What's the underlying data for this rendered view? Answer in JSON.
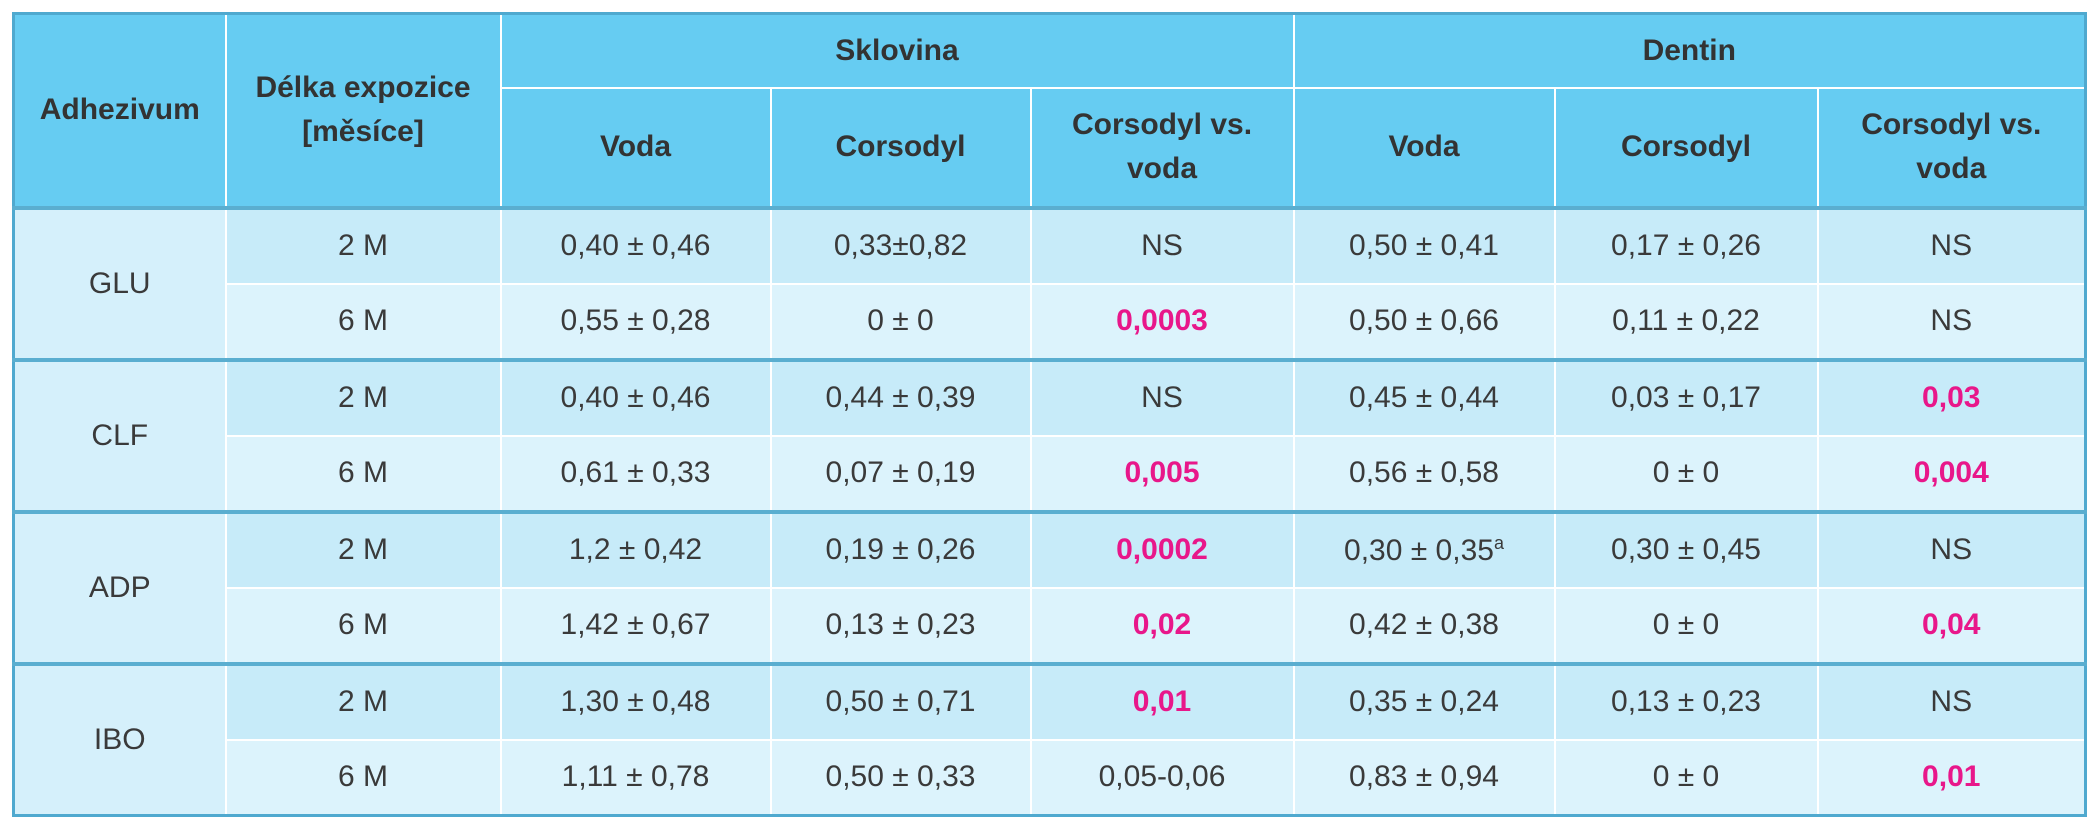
{
  "header": {
    "adhezivum": "Adhezivum",
    "delka_line1": "Délka expozice",
    "delka_line2": "[měsíce]",
    "sklovina": "Sklovina",
    "dentin": "Dentin",
    "voda": "Voda",
    "corsodyl": "Corsodyl",
    "vs_line1": "Corsodyl vs.",
    "vs_line2": "voda"
  },
  "rows": [
    {
      "group": "GLU",
      "m": "2 M",
      "s_voda": "0,40 ± 0,46",
      "s_cors": "0,33±0,82",
      "s_vs": "NS",
      "d_voda": "0,50 ± 0,41",
      "d_cors": "0,17 ± 0,26",
      "d_vs": "NS"
    },
    {
      "group": "GLU",
      "m": "6 M",
      "s_voda": "0,55 ± 0,28",
      "s_cors": "0 ± 0",
      "s_vs": "0,0003",
      "d_voda": "0,50 ± 0,66",
      "d_cors": "0,11 ± 0,22",
      "d_vs": "NS"
    },
    {
      "group": "CLF",
      "m": "2 M",
      "s_voda": "0,40 ± 0,46",
      "s_cors": "0,44 ± 0,39",
      "s_vs": "NS",
      "d_voda": "0,45 ± 0,44",
      "d_cors": "0,03 ± 0,17",
      "d_vs": "0,03"
    },
    {
      "group": "CLF",
      "m": "6 M",
      "s_voda": "0,61 ± 0,33",
      "s_cors": "0,07 ± 0,19",
      "s_vs": "0,005",
      "d_voda": "0,56 ± 0,58",
      "d_cors": "0 ± 0",
      "d_vs": "0,004"
    },
    {
      "group": "ADP",
      "m": "2 M",
      "s_voda": "1,2 ± 0,42",
      "s_cors": "0,19 ± 0,26",
      "s_vs": "0,0002",
      "d_voda": "0,30 ± 0,35",
      "d_voda_sup": "a",
      "d_cors": "0,30 ± 0,45",
      "d_vs": "NS"
    },
    {
      "group": "ADP",
      "m": "6 M",
      "s_voda": "1,42 ± 0,67",
      "s_cors": "0,13 ± 0,23",
      "s_vs": "0,02",
      "d_voda": "0,42 ± 0,38",
      "d_cors": "0 ± 0",
      "d_vs": "0,04"
    },
    {
      "group": "IBO",
      "m": "2 M",
      "s_voda": "1,30 ± 0,48",
      "s_cors": "0,50 ± 0,71",
      "s_vs": "0,01",
      "d_voda": "0,35 ± 0,24",
      "d_cors": "0,13 ± 0,23",
      "d_vs": "NS"
    },
    {
      "group": "IBO",
      "m": "6 M",
      "s_voda": "1,11 ± 0,78",
      "s_cors": "0,50 ± 0,33",
      "s_vs": "0,05-0,06",
      "d_voda": "0,83 ± 0,94",
      "d_cors": "0 ± 0",
      "d_vs": "0,01"
    }
  ],
  "colors": {
    "header_bg": "#66ccf2",
    "cell_bg": "#c7ebf9",
    "significant_text": "#e8178a"
  }
}
